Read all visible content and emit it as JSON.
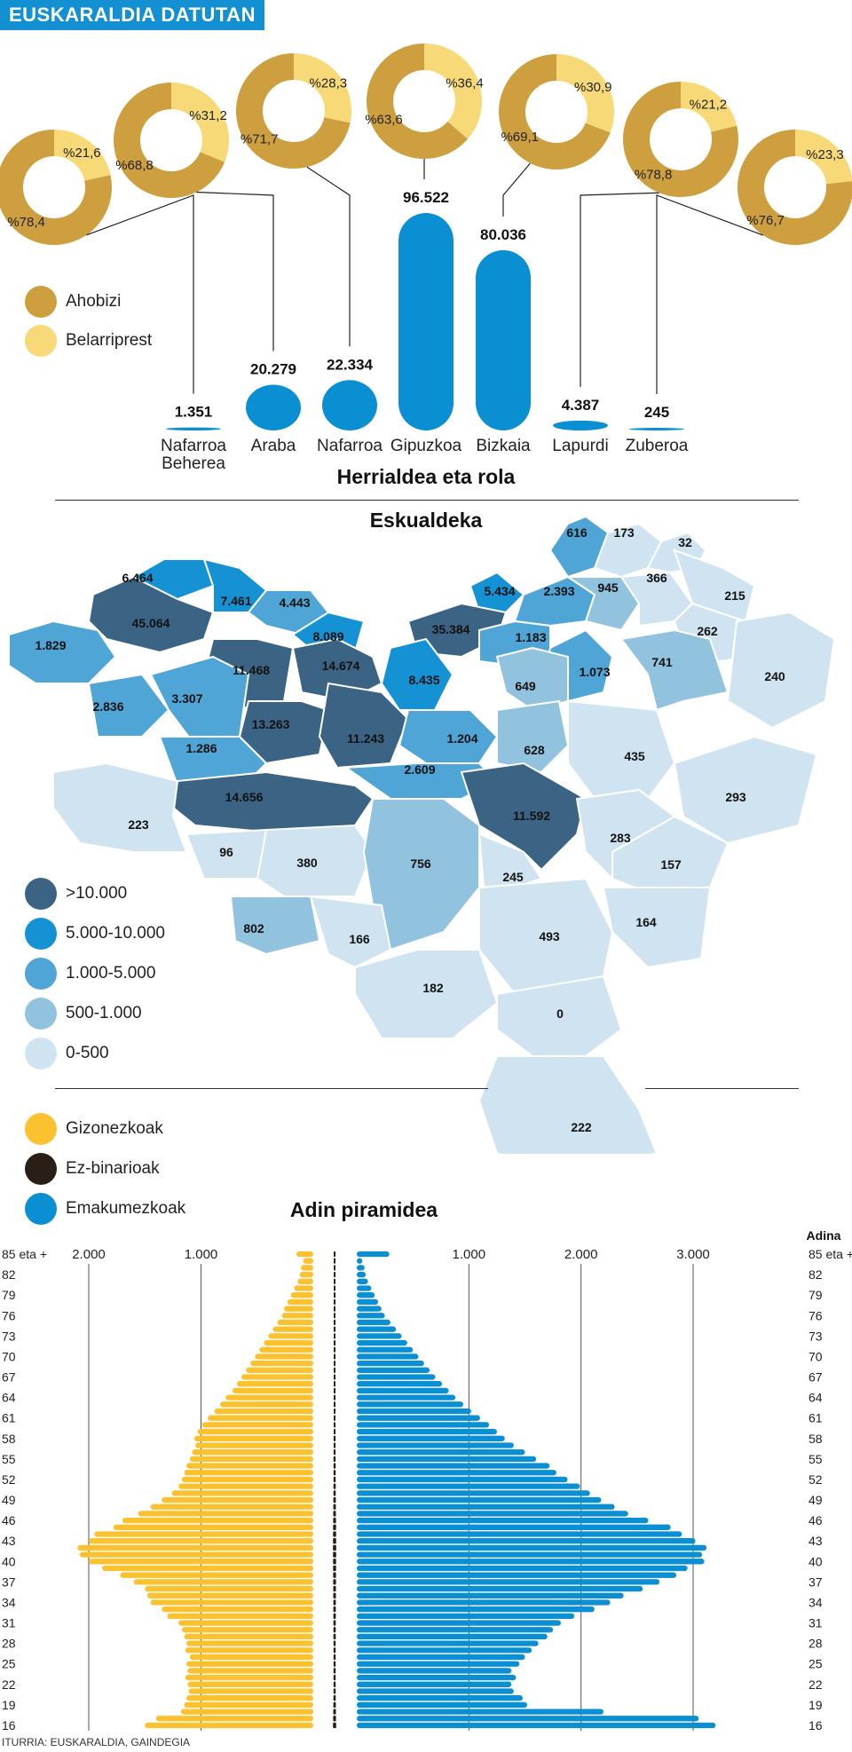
{
  "header": {
    "banner": "EUSKARALDIA DATUTAN"
  },
  "colors": {
    "ahobizi": "#cd9f3e",
    "belarriprest": "#f7d977",
    "blue": "#0b8fd3",
    "gizon": "#fcc12f",
    "ezbinario": "#2a1f16",
    "emakume": "#0b8fd3",
    "scale": [
      "#3a6384",
      "#1592d3",
      "#4ea5d6",
      "#91c3df",
      "#cfe4f0"
    ]
  },
  "role_legend": [
    {
      "label": "Ahobizi",
      "color": "#cd9f3e"
    },
    {
      "label": "Belarriprest",
      "color": "#f7d977"
    }
  ],
  "chart_data": [
    {
      "type": "bar",
      "title": "Herrialdea eta rola",
      "categories": [
        "Nafarroa Beherea",
        "Araba",
        "Nafarroa",
        "Gipuzkoa",
        "Bizkaia",
        "Lapurdi",
        "Zuberoa"
      ],
      "value_labels": [
        "1.351",
        "20.279",
        "22.334",
        "96.522",
        "80.036",
        "4.387",
        "245"
      ],
      "values": [
        1351,
        20279,
        22334,
        96522,
        80036,
        4387,
        245
      ],
      "donuts": [
        {
          "region": "Nafarroa Beherea",
          "ahobizi": 78.4,
          "belarriprest": 21.6,
          "ahobizi_label": "%78,4",
          "belarriprest_label": "%21,6"
        },
        {
          "region": "Araba",
          "ahobizi": 68.8,
          "belarriprest": 31.2,
          "ahobizi_label": "%68,8",
          "belarriprest_label": "%31,2"
        },
        {
          "region": "Nafarroa",
          "ahobizi": 71.7,
          "belarriprest": 28.3,
          "ahobizi_label": "%71,7",
          "belarriprest_label": "%28,3"
        },
        {
          "region": "Gipuzkoa",
          "ahobizi": 63.6,
          "belarriprest": 36.4,
          "ahobizi_label": "%63,6",
          "belarriprest_label": "%36,4"
        },
        {
          "region": "Bizkaia",
          "ahobizi": 69.1,
          "belarriprest": 30.9,
          "ahobizi_label": "%69,1",
          "belarriprest_label": "%30,9"
        },
        {
          "region": "Lapurdi",
          "ahobizi": 78.8,
          "belarriprest": 21.2,
          "ahobizi_label": "%78,8",
          "belarriprest_label": "%21,2"
        },
        {
          "region": "Zuberoa",
          "ahobizi": 76.7,
          "belarriprest": 23.3,
          "ahobizi_label": "%76,7",
          "belarriprest_label": "%23,3"
        }
      ],
      "legend": [
        "Ahobizi",
        "Belarriprest"
      ]
    },
    {
      "type": "heatmap",
      "title": "Eskualdeka",
      "region_values": [
        "616",
        "173",
        "32",
        "6.464",
        "7.461",
        "4.443",
        "5.434",
        "2.393",
        "945",
        "366",
        "215",
        "45.064",
        "8.089",
        "35.384",
        "1.183",
        "262",
        "1.829",
        "11.468",
        "14.674",
        "8.435",
        "1.073",
        "741",
        "240",
        "649",
        "2.836",
        "3.307",
        "13.263",
        "11.243",
        "1.204",
        "1.286",
        "628",
        "435",
        "2.609",
        "14.656",
        "11.592",
        "293",
        "223",
        "283",
        "96",
        "380",
        "756",
        "245",
        "157",
        "164",
        "802",
        "166",
        "493",
        "182",
        "0",
        "222"
      ],
      "legend": [
        {
          "label": ">10.000",
          "color": "#3a6384"
        },
        {
          "label": "5.000-10.000",
          "color": "#1592d3"
        },
        {
          "label": "1.000-5.000",
          "color": "#4ea5d6"
        },
        {
          "label": "500-1.000",
          "color": "#91c3df"
        },
        {
          "label": "0-500",
          "color": "#cfe4f0"
        }
      ]
    },
    {
      "type": "bar",
      "title": "Adin piramidea",
      "ylabel": "Adina",
      "legend": [
        "Gizonezkoak",
        "Ez-binarioak",
        "Emakumezkoak"
      ],
      "left_axis_ticks": [
        "2.000",
        "1.000"
      ],
      "right_axis_ticks": [
        "1.000",
        "2.000",
        "3.000"
      ],
      "xlim": [
        0,
        3400
      ],
      "age_labels": [
        "85 eta +",
        "82",
        "79",
        "76",
        "73",
        "70",
        "67",
        "64",
        "61",
        "58",
        "55",
        "52",
        "49",
        "46",
        "43",
        "40",
        "37",
        "34",
        "31",
        "28",
        "25",
        "22",
        "19",
        "16"
      ],
      "ages_top_to_bottom": [
        "85+",
        84,
        83,
        82,
        81,
        80,
        79,
        78,
        77,
        76,
        75,
        74,
        73,
        72,
        71,
        70,
        69,
        68,
        67,
        66,
        65,
        64,
        63,
        62,
        61,
        60,
        59,
        58,
        57,
        56,
        55,
        54,
        53,
        52,
        51,
        50,
        49,
        48,
        47,
        46,
        45,
        44,
        43,
        42,
        41,
        40,
        39,
        38,
        37,
        36,
        35,
        34,
        33,
        32,
        31,
        30,
        29,
        28,
        27,
        26,
        25,
        24,
        23,
        22,
        21,
        20,
        19,
        18,
        17,
        16
      ],
      "series": [
        {
          "name": "Gizonezkoak",
          "values": [
            150,
            90,
            110,
            120,
            140,
            170,
            200,
            230,
            260,
            280,
            320,
            360,
            400,
            440,
            480,
            520,
            560,
            600,
            640,
            680,
            720,
            780,
            830,
            880,
            940,
            990,
            1030,
            1060,
            1050,
            1080,
            1100,
            1130,
            1150,
            1170,
            1200,
            1260,
            1350,
            1450,
            1560,
            1700,
            1780,
            1950,
            2000,
            2100,
            2080,
            2000,
            1880,
            1720,
            1600,
            1500,
            1480,
            1450,
            1350,
            1300,
            1200,
            1170,
            1150,
            1130,
            1140,
            1100,
            1130,
            1120,
            1140,
            1120,
            1110,
            1130,
            1150,
            1180,
            1400,
            1500
          ]
        },
        {
          "name": "Ez-binarioak",
          "values": [
            8,
            4,
            4,
            4,
            4,
            4,
            4,
            5,
            5,
            5,
            5,
            6,
            6,
            6,
            6,
            7,
            7,
            7,
            8,
            8,
            8,
            8,
            9,
            9,
            10,
            10,
            10,
            11,
            11,
            11,
            12,
            12,
            12,
            12,
            13,
            13,
            14,
            14,
            15,
            16,
            17,
            17,
            18,
            18,
            18,
            17,
            17,
            16,
            16,
            15,
            15,
            14,
            14,
            14,
            13,
            13,
            13,
            12,
            12,
            12,
            12,
            12,
            12,
            12,
            12,
            13,
            14,
            15,
            16,
            18
          ]
        },
        {
          "name": "Emakumezkoak",
          "values": [
            290,
            50,
            70,
            80,
            100,
            130,
            160,
            190,
            220,
            250,
            300,
            350,
            400,
            450,
            500,
            550,
            600,
            650,
            700,
            760,
            820,
            880,
            950,
            1020,
            1100,
            1180,
            1250,
            1320,
            1400,
            1500,
            1600,
            1720,
            1780,
            1880,
            1990,
            2080,
            2180,
            2300,
            2420,
            2600,
            2800,
            2900,
            3020,
            3120,
            3080,
            3100,
            2950,
            2850,
            2700,
            2550,
            2380,
            2260,
            2120,
            1940,
            1820,
            1750,
            1700,
            1620,
            1560,
            1500,
            1450,
            1380,
            1420,
            1380,
            1400,
            1480,
            1520,
            2200,
            3050,
            3200
          ]
        }
      ]
    }
  ],
  "source": "ITURRIA: EUSKARALDIA, GAINDEGIA"
}
